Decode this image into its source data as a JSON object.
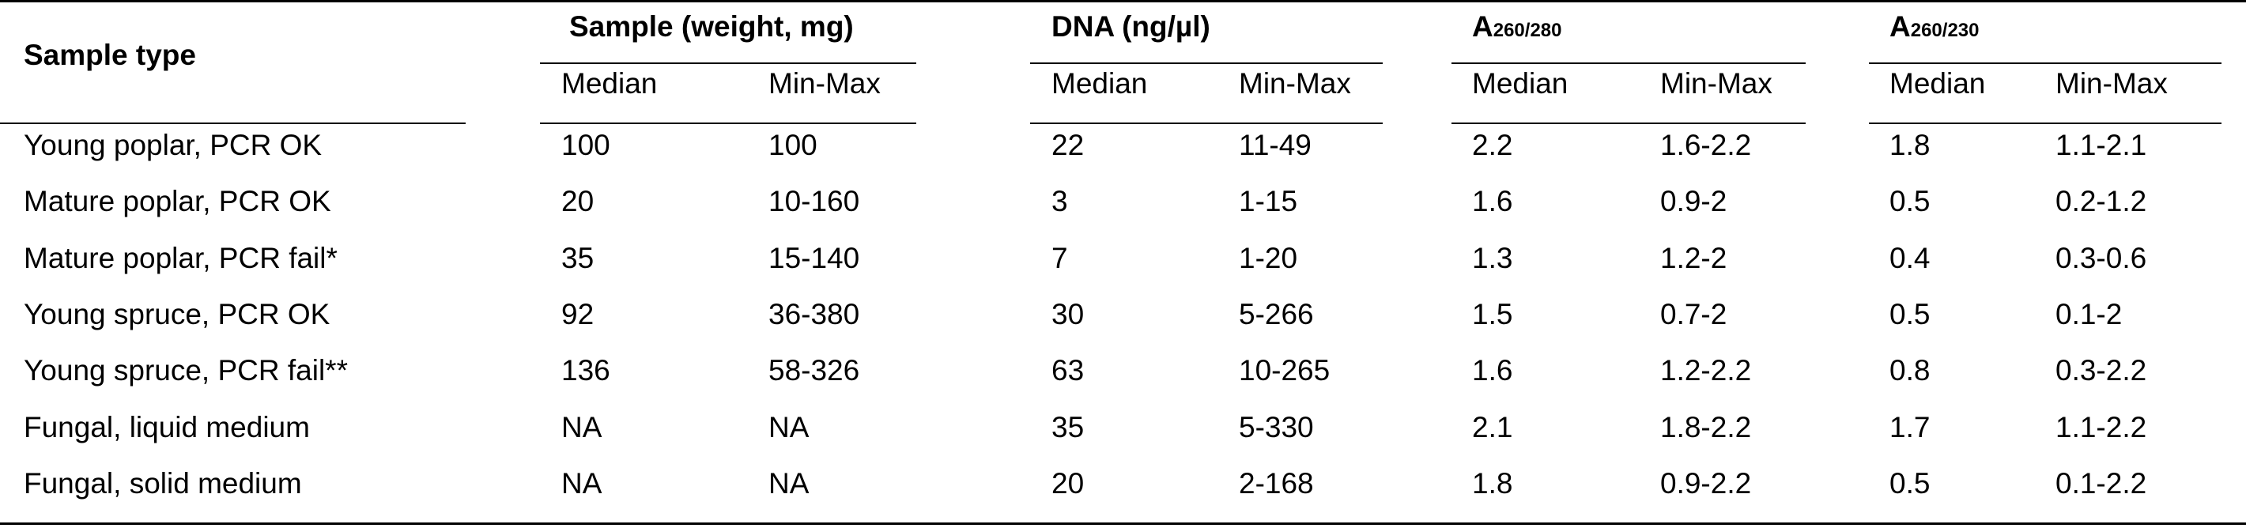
{
  "table": {
    "header": {
      "sample_type": "Sample type",
      "group_sample": "Sample (weight, mg)",
      "group_dna": "DNA (ng/µl)",
      "group_a280": {
        "main": "A",
        "sub": "260/280"
      },
      "group_a230": {
        "main": "A",
        "sub": "260/230"
      },
      "median": "Median",
      "minmax": "Min-Max"
    },
    "rows": [
      {
        "type": "Young poplar, PCR OK",
        "w_med": "100",
        "w_mm": "100",
        "dna_med": "22",
        "dna_mm": "11-49",
        "a280_med": "2.2",
        "a280_mm": "1.6-2.2",
        "a230_med": "1.8",
        "a230_mm": "1.1-2.1"
      },
      {
        "type": "Mature poplar, PCR OK",
        "w_med": "20",
        "w_mm": "10-160",
        "dna_med": "3",
        "dna_mm": "1-15",
        "a280_med": "1.6",
        "a280_mm": "0.9-2",
        "a230_med": "0.5",
        "a230_mm": "0.2-1.2"
      },
      {
        "type": "Mature poplar, PCR fail*",
        "w_med": "35",
        "w_mm": "15-140",
        "dna_med": "7",
        "dna_mm": "1-20",
        "a280_med": "1.3",
        "a280_mm": "1.2-2",
        "a230_med": "0.4",
        "a230_mm": "0.3-0.6"
      },
      {
        "type": "Young spruce, PCR OK",
        "w_med": "92",
        "w_mm": "36-380",
        "dna_med": "30",
        "dna_mm": "5-266",
        "a280_med": "1.5",
        "a280_mm": "0.7-2",
        "a230_med": "0.5",
        "a230_mm": "0.1-2"
      },
      {
        "type": "Young spruce, PCR fail**",
        "w_med": "136",
        "w_mm": "58-326",
        "dna_med": "63",
        "dna_mm": "10-265",
        "a280_med": "1.6",
        "a280_mm": "1.2-2.2",
        "a230_med": "0.8",
        "a230_mm": "0.3-2.2"
      },
      {
        "type": "Fungal, liquid medium",
        "w_med": "NA",
        "w_mm": "NA",
        "dna_med": "35",
        "dna_mm": "5-330",
        "a280_med": "2.1",
        "a280_mm": "1.8-2.2",
        "a230_med": "1.7",
        "a230_mm": "1.1-2.2"
      },
      {
        "type": "Fungal, solid medium",
        "w_med": "NA",
        "w_mm": "NA",
        "dna_med": "20",
        "dna_mm": "2-168",
        "a280_med": "1.8",
        "a280_mm": "0.9-2.2",
        "a230_med": "0.5",
        "a230_mm": "0.1-2.2"
      }
    ]
  }
}
